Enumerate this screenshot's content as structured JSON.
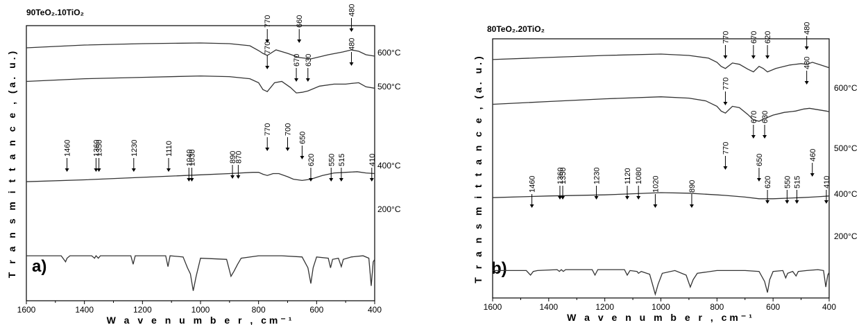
{
  "chart_data": [
    {
      "type": "line",
      "panel_label": "a)",
      "title": "90TeO₂.10TiO₂",
      "xlabel": "W a v e n u m b e r , cm⁻¹",
      "ylabel": "T r a n s m i t t a n c e , (a. u.)",
      "xlim": [
        1600,
        400
      ],
      "xticks": [
        "1600",
        "1400",
        "1200",
        "1000",
        "800",
        "600",
        "400"
      ],
      "series": [
        {
          "name": "600°C",
          "points": [
            [
              1600,
              0.86
            ],
            [
              1400,
              0.9
            ],
            [
              1200,
              0.92
            ],
            [
              1000,
              0.93
            ],
            [
              900,
              0.92
            ],
            [
              830,
              0.89
            ],
            [
              800,
              0.82
            ],
            [
              785,
              0.78
            ],
            [
              770,
              0.75
            ],
            [
              740,
              0.83
            ],
            [
              700,
              0.78
            ],
            [
              660,
              0.72
            ],
            [
              620,
              0.7
            ],
            [
              560,
              0.76
            ],
            [
              510,
              0.8
            ],
            [
              480,
              0.83
            ],
            [
              455,
              0.81
            ],
            [
              430,
              0.76
            ],
            [
              400,
              0.74
            ]
          ],
          "peaks": [
            "770",
            "660",
            "480"
          ]
        },
        {
          "name": "500°C",
          "points": [
            [
              1600,
              0.74
            ],
            [
              1400,
              0.78
            ],
            [
              1200,
              0.8
            ],
            [
              1000,
              0.82
            ],
            [
              900,
              0.81
            ],
            [
              830,
              0.78
            ],
            [
              800,
              0.72
            ],
            [
              785,
              0.62
            ],
            [
              770,
              0.59
            ],
            [
              745,
              0.72
            ],
            [
              720,
              0.74
            ],
            [
              690,
              0.65
            ],
            [
              670,
              0.57
            ],
            [
              650,
              0.58
            ],
            [
              630,
              0.6
            ],
            [
              590,
              0.67
            ],
            [
              540,
              0.7
            ],
            [
              500,
              0.7
            ],
            [
              480,
              0.71
            ],
            [
              455,
              0.72
            ],
            [
              430,
              0.66
            ],
            [
              400,
              0.64
            ]
          ],
          "peaks": [
            "770",
            "670",
            "630",
            "480"
          ]
        },
        {
          "name": "400°C",
          "points": [
            [
              1600,
              0.42
            ],
            [
              1400,
              0.45
            ],
            [
              1200,
              0.49
            ],
            [
              1000,
              0.53
            ],
            [
              900,
              0.55
            ],
            [
              820,
              0.57
            ],
            [
              800,
              0.57
            ],
            [
              785,
              0.54
            ],
            [
              770,
              0.52
            ],
            [
              750,
              0.55
            ],
            [
              730,
              0.55
            ],
            [
              700,
              0.5
            ],
            [
              680,
              0.46
            ],
            [
              650,
              0.44
            ],
            [
              620,
              0.46
            ],
            [
              580,
              0.52
            ],
            [
              540,
              0.56
            ],
            [
              500,
              0.57
            ],
            [
              460,
              0.58
            ],
            [
              430,
              0.56
            ],
            [
              400,
              0.55
            ]
          ],
          "peaks": [
            "770",
            "700",
            "650"
          ]
        },
        {
          "name": "200°C",
          "points": [
            [
              1600,
              0.35
            ],
            [
              1480,
              0.35
            ],
            [
              1465,
              0.3
            ],
            [
              1460,
              0.33
            ],
            [
              1450,
              0.35
            ],
            [
              1375,
              0.35
            ],
            [
              1365,
              0.33
            ],
            [
              1360,
              0.35
            ],
            [
              1352,
              0.33
            ],
            [
              1345,
              0.35
            ],
            [
              1240,
              0.35
            ],
            [
              1232,
              0.28
            ],
            [
              1225,
              0.35
            ],
            [
              1120,
              0.35
            ],
            [
              1112,
              0.26
            ],
            [
              1105,
              0.35
            ],
            [
              1060,
              0.34
            ],
            [
              1045,
              0.25
            ],
            [
              1035,
              0.2
            ],
            [
              1025,
              0.06
            ],
            [
              1015,
              0.18
            ],
            [
              1000,
              0.33
            ],
            [
              910,
              0.32
            ],
            [
              895,
              0.18
            ],
            [
              885,
              0.22
            ],
            [
              872,
              0.28
            ],
            [
              860,
              0.33
            ],
            [
              800,
              0.35
            ],
            [
              720,
              0.35
            ],
            [
              650,
              0.34
            ],
            [
              630,
              0.25
            ],
            [
              620,
              0.12
            ],
            [
              612,
              0.25
            ],
            [
              600,
              0.34
            ],
            [
              560,
              0.33
            ],
            [
              552,
              0.25
            ],
            [
              545,
              0.32
            ],
            [
              525,
              0.33
            ],
            [
              515,
              0.26
            ],
            [
              508,
              0.32
            ],
            [
              480,
              0.34
            ],
            [
              440,
              0.35
            ],
            [
              420,
              0.33
            ],
            [
              412,
              0.1
            ],
            [
              405,
              0.3
            ],
            [
              400,
              0.32
            ]
          ],
          "peaks": [
            "1460",
            "1360",
            "1350",
            "1230",
            "1110",
            "1040",
            "1030",
            "890",
            "870",
            "620",
            "550",
            "515",
            "410"
          ]
        }
      ]
    },
    {
      "type": "line",
      "panel_label": "b)",
      "title": "80TeO₂.20TiO₂",
      "xlabel": "W a v e n u m b e r , cm⁻¹",
      "ylabel": "T r a n s m i t t a n c e , (a. u.)",
      "xlim": [
        1600,
        400
      ],
      "xticks": [
        "1600",
        "1400",
        "1200",
        "1000",
        "800",
        "600",
        "400"
      ],
      "series": [
        {
          "name": "600°C",
          "points": [
            [
              1600,
              0.9
            ],
            [
              1400,
              0.93
            ],
            [
              1200,
              0.96
            ],
            [
              1000,
              0.98
            ],
            [
              900,
              0.96
            ],
            [
              830,
              0.92
            ],
            [
              800,
              0.86
            ],
            [
              785,
              0.8
            ],
            [
              770,
              0.77
            ],
            [
              745,
              0.85
            ],
            [
              720,
              0.83
            ],
            [
              690,
              0.76
            ],
            [
              670,
              0.72
            ],
            [
              650,
              0.8
            ],
            [
              635,
              0.77
            ],
            [
              620,
              0.72
            ],
            [
              590,
              0.77
            ],
            [
              540,
              0.82
            ],
            [
              500,
              0.84
            ],
            [
              480,
              0.83
            ],
            [
              460,
              0.86
            ],
            [
              430,
              0.82
            ],
            [
              400,
              0.78
            ]
          ],
          "peaks": [
            "770",
            "670",
            "620",
            "480"
          ]
        },
        {
          "name": "500°C",
          "points": [
            [
              1600,
              0.73
            ],
            [
              1400,
              0.77
            ],
            [
              1200,
              0.81
            ],
            [
              1000,
              0.84
            ],
            [
              900,
              0.82
            ],
            [
              840,
              0.78
            ],
            [
              800,
              0.7
            ],
            [
              785,
              0.63
            ],
            [
              770,
              0.6
            ],
            [
              745,
              0.7
            ],
            [
              720,
              0.68
            ],
            [
              690,
              0.58
            ],
            [
              670,
              0.5
            ],
            [
              650,
              0.48
            ],
            [
              635,
              0.51
            ],
            [
              600,
              0.57
            ],
            [
              560,
              0.61
            ],
            [
              520,
              0.63
            ],
            [
              490,
              0.66
            ],
            [
              470,
              0.67
            ],
            [
              440,
              0.65
            ],
            [
              410,
              0.63
            ],
            [
              400,
              0.62
            ]
          ],
          "peaks": [
            "770",
            "670",
            "630",
            "480"
          ]
        },
        {
          "name": "400°C",
          "points": [
            [
              1600,
              0.41
            ],
            [
              1400,
              0.44
            ],
            [
              1200,
              0.46
            ],
            [
              1100,
              0.48
            ],
            [
              1000,
              0.5
            ],
            [
              900,
              0.49
            ],
            [
              800,
              0.46
            ],
            [
              770,
              0.45
            ],
            [
              700,
              0.42
            ],
            [
              650,
              0.39
            ],
            [
              600,
              0.39
            ],
            [
              550,
              0.4
            ],
            [
              500,
              0.41
            ],
            [
              460,
              0.42
            ],
            [
              430,
              0.43
            ],
            [
              400,
              0.44
            ]
          ],
          "peaks": [
            "770",
            "650",
            "460"
          ]
        },
        {
          "name": "200°C",
          "points": [
            [
              1600,
              0.3
            ],
            [
              1480,
              0.3
            ],
            [
              1465,
              0.25
            ],
            [
              1455,
              0.29
            ],
            [
              1440,
              0.3
            ],
            [
              1370,
              0.31
            ],
            [
              1362,
              0.29
            ],
            [
              1355,
              0.31
            ],
            [
              1348,
              0.29
            ],
            [
              1340,
              0.31
            ],
            [
              1245,
              0.31
            ],
            [
              1235,
              0.25
            ],
            [
              1225,
              0.31
            ],
            [
              1130,
              0.31
            ],
            [
              1120,
              0.25
            ],
            [
              1110,
              0.3
            ],
            [
              1085,
              0.29
            ],
            [
              1080,
              0.27
            ],
            [
              1070,
              0.29
            ],
            [
              1040,
              0.26
            ],
            [
              1030,
              0.15
            ],
            [
              1020,
              0.04
            ],
            [
              1010,
              0.15
            ],
            [
              995,
              0.27
            ],
            [
              950,
              0.3
            ],
            [
              910,
              0.25
            ],
            [
              895,
              0.12
            ],
            [
              885,
              0.2
            ],
            [
              870,
              0.27
            ],
            [
              800,
              0.3
            ],
            [
              700,
              0.3
            ],
            [
              650,
              0.29
            ],
            [
              630,
              0.18
            ],
            [
              620,
              0.06
            ],
            [
              612,
              0.2
            ],
            [
              600,
              0.29
            ],
            [
              565,
              0.3
            ],
            [
              555,
              0.22
            ],
            [
              548,
              0.27
            ],
            [
              530,
              0.29
            ],
            [
              518,
              0.24
            ],
            [
              510,
              0.29
            ],
            [
              480,
              0.3
            ],
            [
              440,
              0.31
            ],
            [
              420,
              0.3
            ],
            [
              412,
              0.12
            ],
            [
              405,
              0.25
            ],
            [
              400,
              0.28
            ]
          ],
          "peaks": [
            "1460",
            "1360",
            "1350",
            "1230",
            "1120",
            "1080",
            "1020",
            "890",
            "620",
            "550",
            "515",
            "410"
          ]
        }
      ]
    }
  ]
}
